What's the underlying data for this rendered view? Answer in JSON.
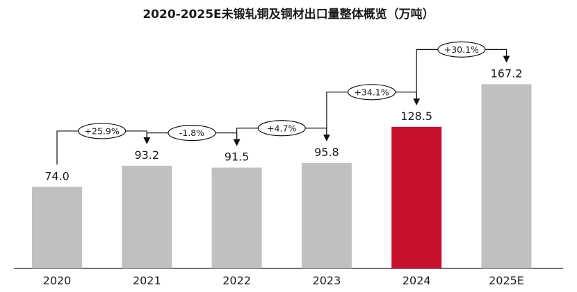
{
  "chart_data": {
    "type": "bar",
    "title": "2020-2025E未锻轧铜及铜材出口量整体概览（万吨）",
    "categories": [
      "2020",
      "2021",
      "2022",
      "2023",
      "2024",
      "2025E"
    ],
    "values": [
      74.0,
      93.2,
      91.5,
      95.8,
      128.5,
      167.2
    ],
    "value_labels": [
      "74.0",
      "93.2",
      "91.5",
      "95.8",
      "128.5",
      "167.2"
    ],
    "growth_labels": [
      "+25.9%",
      "-1.8%",
      "+4.7%",
      "+34.1%",
      "+30.1%"
    ],
    "highlight_index": 4,
    "ylim": [
      0,
      180
    ],
    "xlabel": "",
    "ylabel": "",
    "grid": false,
    "colors": {
      "bar": "#c0c0c0",
      "highlight": "#c8102e",
      "axis": "#222222"
    }
  }
}
